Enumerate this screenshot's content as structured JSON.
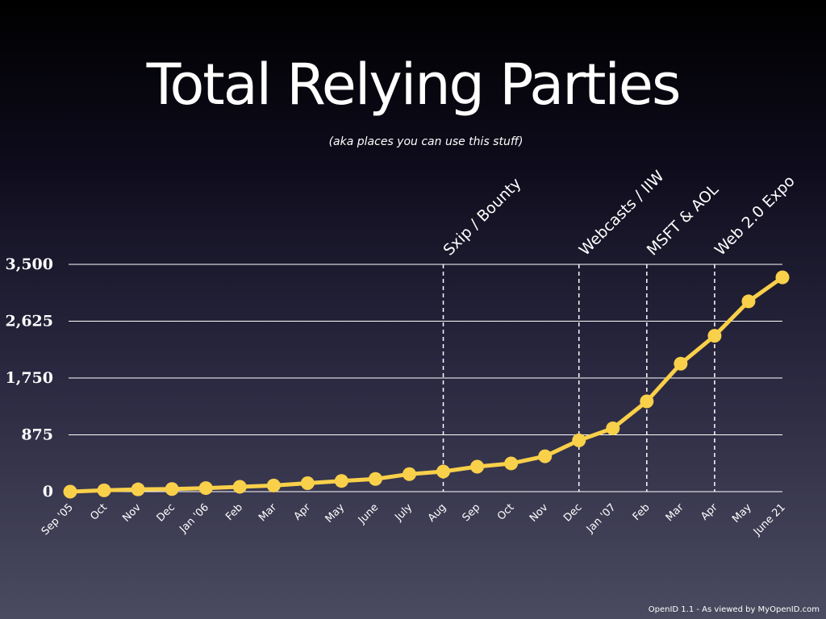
{
  "slide": {
    "title": "Total Relying Parties",
    "subtitle": "(aka places you can use this stuff)",
    "footer": "OpenID 1.1 - As viewed by MyOpenID.com"
  },
  "colors": {
    "line": "#f9d04a",
    "grid": "#ffffff",
    "text": "#ffffff"
  },
  "chart_data": {
    "type": "line",
    "title": "Total Relying Parties",
    "subtitle": "(aka places you can use this stuff)",
    "categories": [
      "Sep '05",
      "Oct",
      "Nov",
      "Dec",
      "Jan '06",
      "Feb",
      "Mar",
      "Apr",
      "May",
      "June",
      "July",
      "Aug",
      "Sep",
      "Oct",
      "Nov",
      "Dec",
      "Jan '07",
      "Feb",
      "Mar",
      "Apr",
      "May",
      "June 21"
    ],
    "series": [
      {
        "values": [
          0,
          20,
          35,
          40,
          55,
          75,
          95,
          130,
          165,
          195,
          270,
          310,
          385,
          435,
          545,
          790,
          975,
          1390,
          1970,
          2400,
          2930,
          3300
        ]
      }
    ],
    "ylim": [
      0,
      3500
    ],
    "yticks": [
      0,
      875,
      1750,
      2625,
      3500
    ],
    "ytick_labels": [
      "0",
      "875",
      "1,750",
      "2,625",
      "3,500"
    ],
    "grid": true,
    "annotations": [
      {
        "label": "Sxip / Bounty",
        "category_index": 11
      },
      {
        "label": "Webcasts / IIW",
        "category_index": 15
      },
      {
        "label": "MSFT & AOL",
        "category_index": 17
      },
      {
        "label": "Web  2.0 Expo",
        "category_index": 19
      }
    ]
  }
}
